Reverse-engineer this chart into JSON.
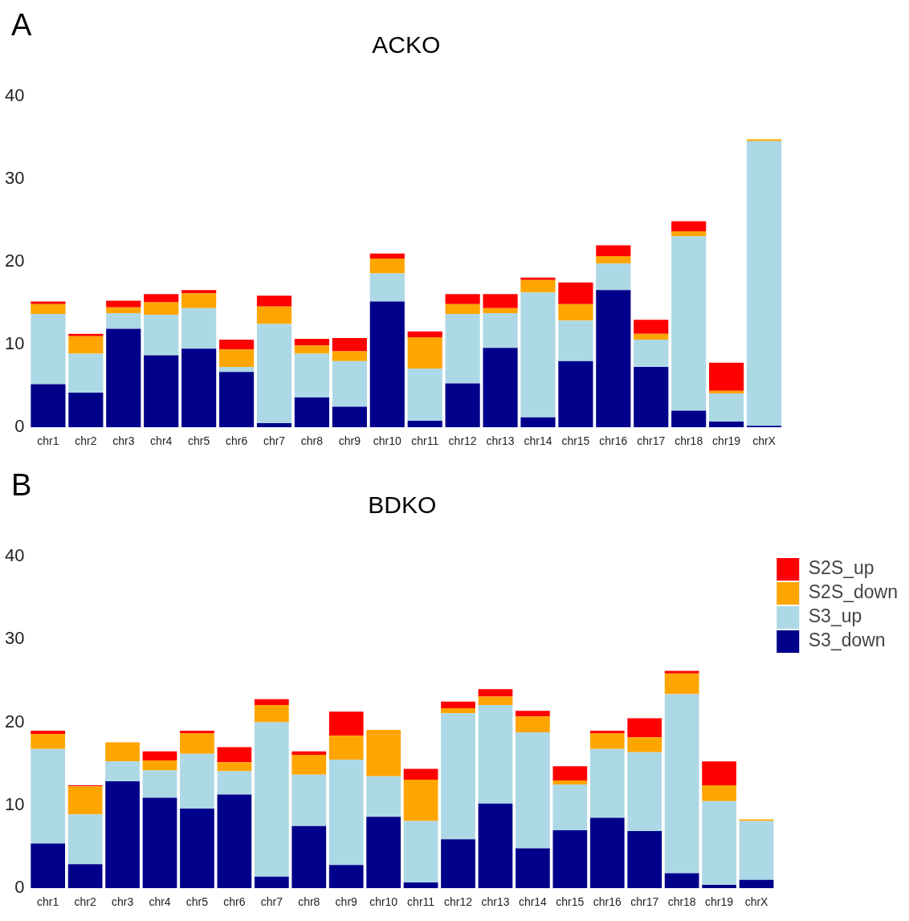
{
  "chart_data": [
    {
      "type": "bar",
      "title": "ACKO",
      "annotations": [
        "A"
      ],
      "stacked": true,
      "grid": false,
      "legend": false,
      "ylim": [
        0,
        40
      ],
      "yticks": [
        0,
        10,
        20,
        30,
        40
      ],
      "categories": [
        "chr1",
        "chr2",
        "chr3",
        "chr4",
        "chr5",
        "chr6",
        "chr7",
        "chr8",
        "chr9",
        "chr10",
        "chr11",
        "chr12",
        "chr13",
        "chr14",
        "chr15",
        "chr16",
        "chr17",
        "chr18",
        "chr19",
        "chrX"
      ],
      "series": [
        {
          "color": "#00008b",
          "values": [
            5.2,
            4.2,
            11.9,
            8.7,
            9.5,
            6.7,
            0.5,
            3.6,
            2.5,
            15.2,
            0.8,
            5.3,
            9.6,
            1.2,
            8.0,
            16.6,
            7.3,
            2.0,
            0.7,
            0.2
          ]
        },
        {
          "color": "#add8e6",
          "values": [
            8.5,
            4.7,
            1.9,
            4.9,
            4.9,
            0.6,
            12.0,
            5.3,
            5.5,
            3.4,
            6.3,
            8.4,
            4.2,
            15.1,
            4.9,
            3.2,
            3.3,
            21.1,
            3.4,
            34.4
          ]
        },
        {
          "color": "#ffa500",
          "values": [
            1.2,
            2.1,
            0.7,
            1.5,
            1.8,
            2.1,
            2.1,
            1.0,
            1.2,
            1.8,
            3.8,
            1.2,
            0.6,
            1.5,
            2.0,
            0.9,
            0.7,
            0.6,
            0.3,
            0.2
          ]
        },
        {
          "color": "#ff0000",
          "values": [
            0.3,
            0.3,
            0.8,
            1.0,
            0.4,
            1.2,
            1.3,
            0.8,
            1.6,
            0.6,
            0.7,
            1.2,
            1.7,
            0.3,
            2.6,
            1.3,
            1.7,
            1.2,
            3.4,
            0
          ]
        }
      ]
    },
    {
      "type": "bar",
      "title": "BDKO",
      "annotations": [
        "B"
      ],
      "stacked": true,
      "grid": false,
      "legend": "top right",
      "ylim": [
        0,
        40
      ],
      "yticks": [
        0,
        10,
        20,
        30,
        40
      ],
      "categories": [
        "chr1",
        "chr2",
        "chr3",
        "chr4",
        "chr5",
        "chr6",
        "chr7",
        "chr8",
        "chr9",
        "chr10",
        "chr11",
        "chr12",
        "chr13",
        "chr14",
        "chr15",
        "chr16",
        "chr17",
        "chr18",
        "chr19",
        "chrX"
      ],
      "series": [
        {
          "name": "S3_down",
          "color": "#00008b",
          "values": [
            5.4,
            2.9,
            12.9,
            10.9,
            9.6,
            11.3,
            1.4,
            7.5,
            2.8,
            8.6,
            0.7,
            5.9,
            10.2,
            4.8,
            7.0,
            8.5,
            6.9,
            1.8,
            0.4,
            1.0
          ]
        },
        {
          "name": "S3_up",
          "color": "#add8e6",
          "values": [
            11.4,
            6.0,
            2.4,
            3.3,
            6.6,
            2.8,
            18.6,
            6.2,
            12.7,
            4.9,
            7.4,
            15.2,
            11.9,
            14.0,
            5.5,
            8.3,
            9.5,
            21.6,
            10.1,
            7.1
          ]
        },
        {
          "name": "S2S_down",
          "color": "#ffa500",
          "values": [
            1.8,
            3.4,
            2.3,
            1.2,
            2.5,
            1.1,
            2.1,
            2.4,
            2.9,
            5.6,
            5.0,
            0.6,
            1.0,
            1.9,
            0.5,
            1.9,
            1.8,
            2.5,
            1.9,
            0.2
          ]
        },
        {
          "name": "S2S_up",
          "color": "#ff0000",
          "values": [
            0.4,
            0.1,
            0,
            1.1,
            0.3,
            1.8,
            0.7,
            0.4,
            2.9,
            0,
            1.3,
            0.8,
            0.9,
            0.7,
            1.7,
            0.3,
            2.3,
            0.3,
            2.9,
            0
          ]
        }
      ]
    }
  ]
}
